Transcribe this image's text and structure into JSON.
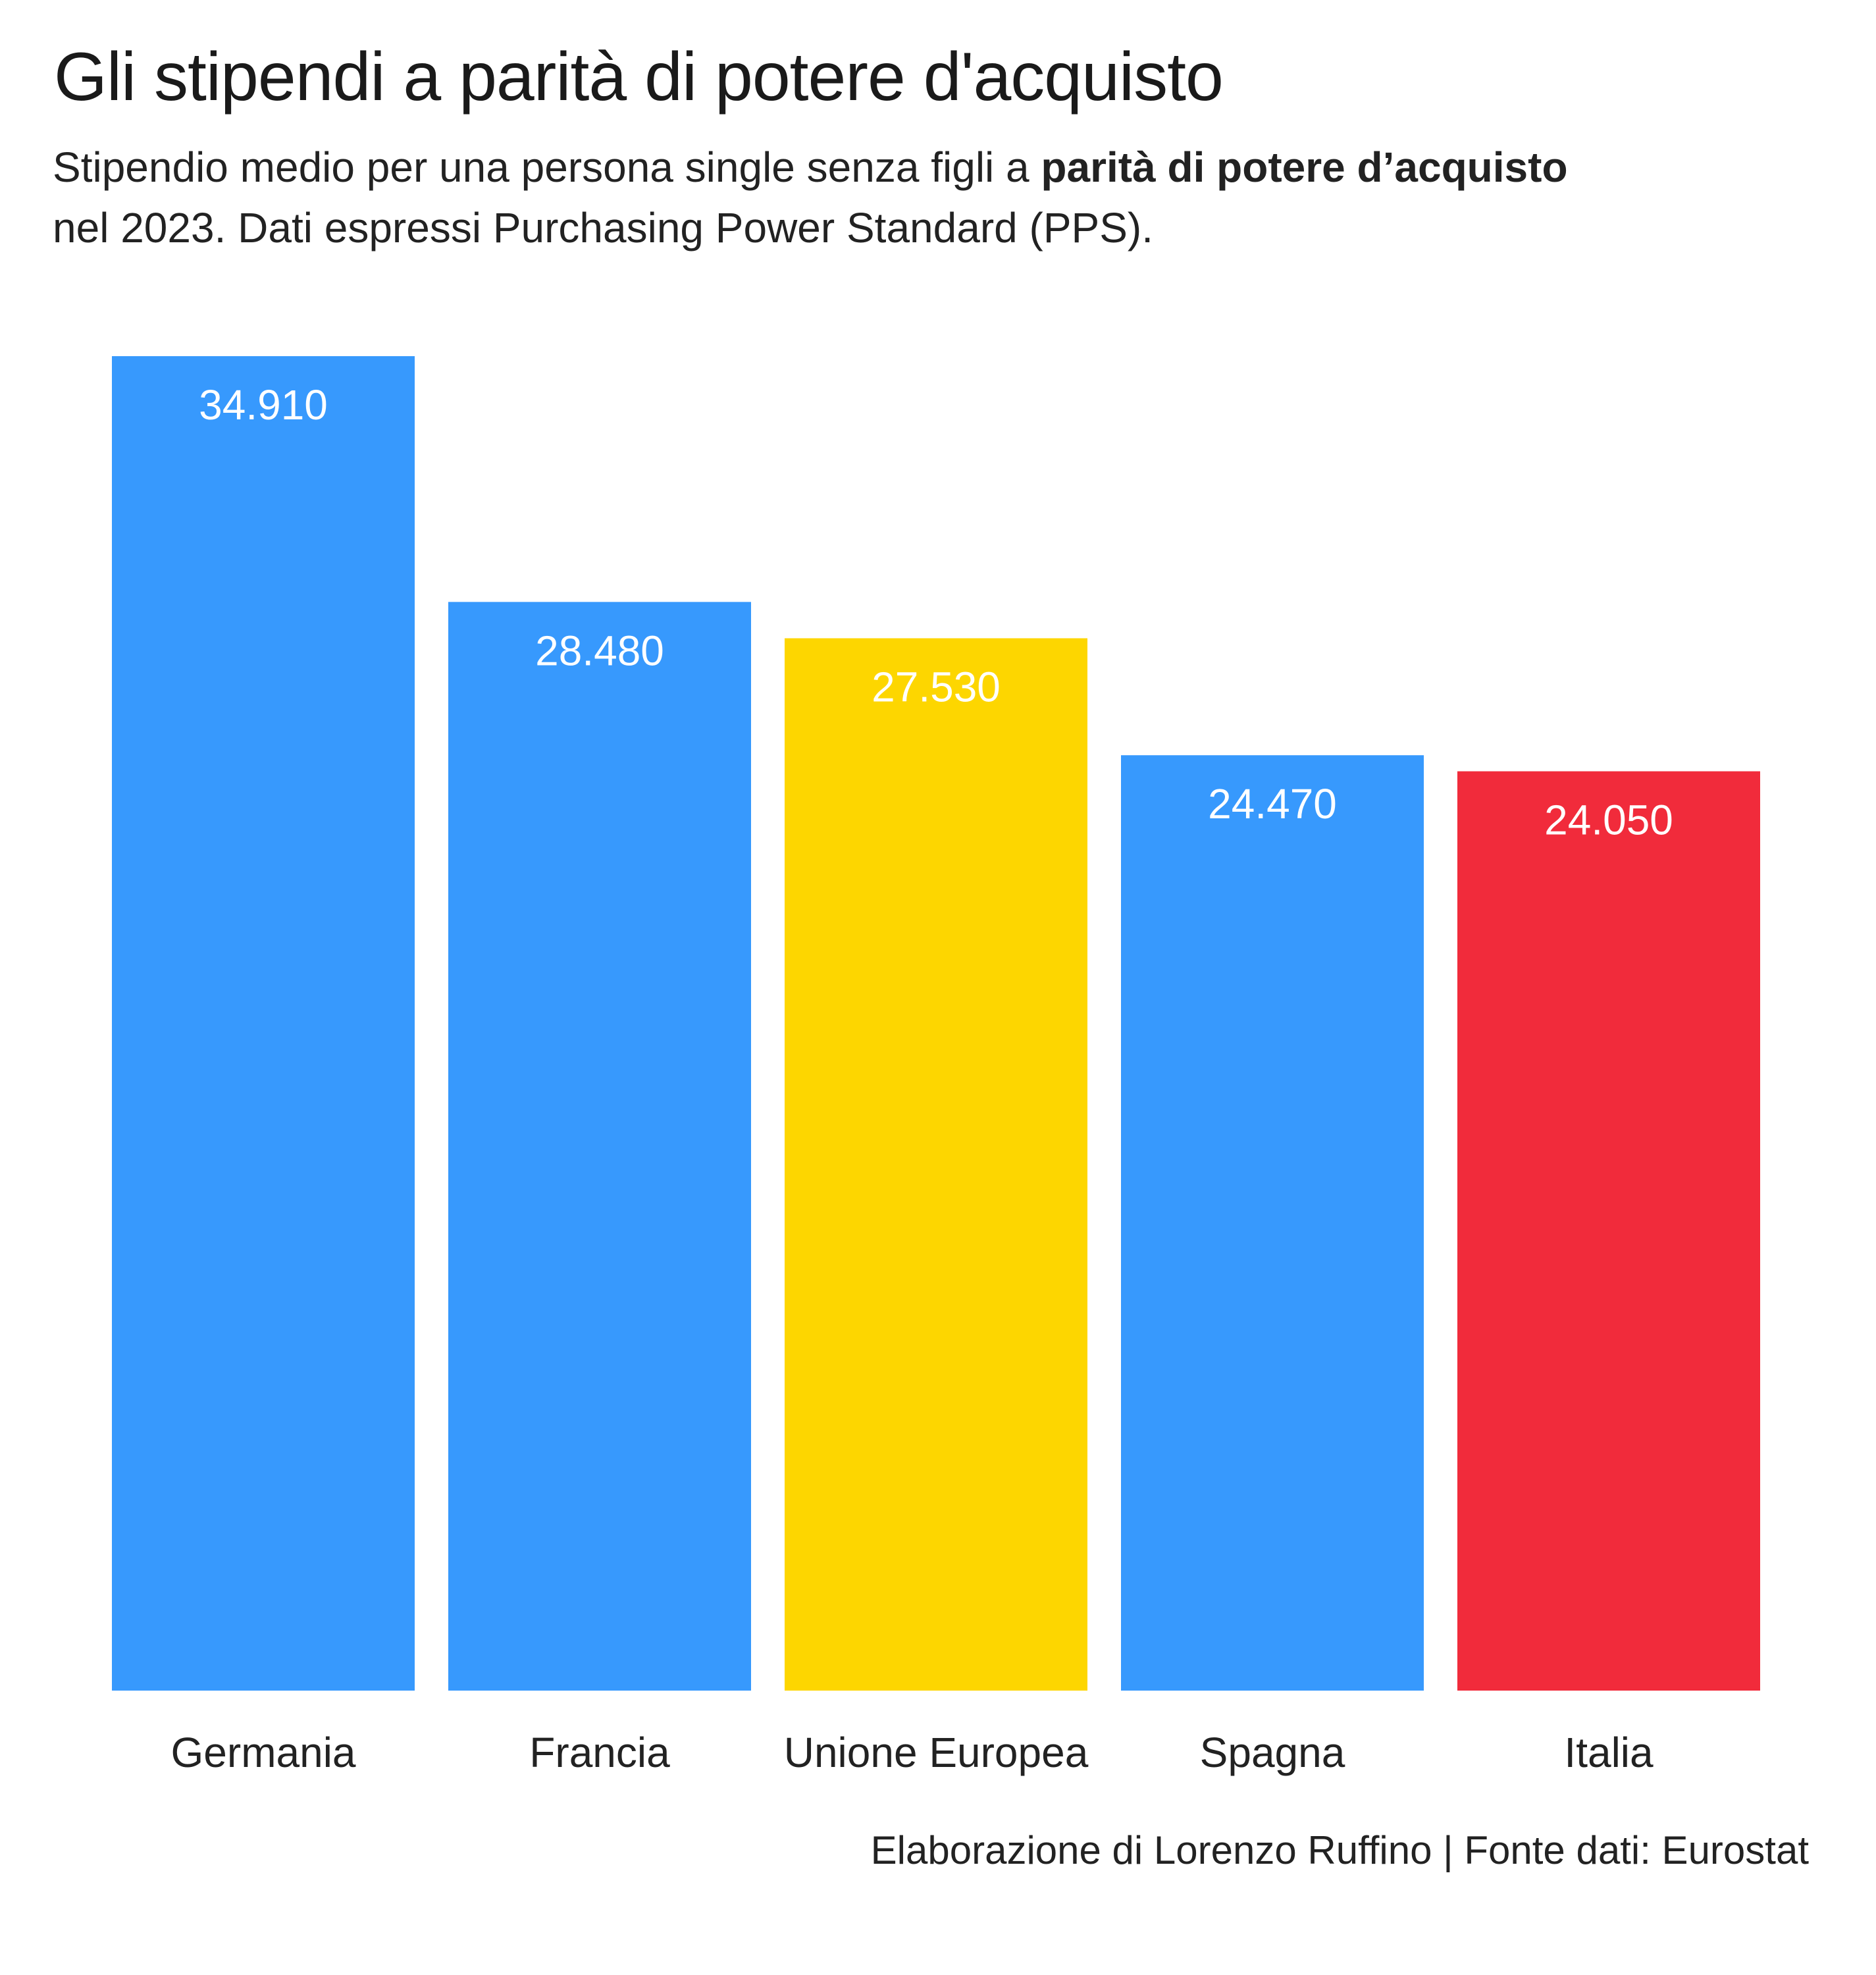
{
  "header": {
    "title": "Gli stipendi a parità di potere d'acquisto",
    "subtitle_part1": "Stipendio medio per una persona single senza figli a ",
    "subtitle_bold": "parità di potere d’acquisto",
    "subtitle_line2": "nel 2023. Dati espressi Purchasing Power Standard (PPS)."
  },
  "chart_data": {
    "type": "bar",
    "categories": [
      "Germania",
      "Francia",
      "Unione Europea",
      "Spagna",
      "Italia"
    ],
    "values": [
      34910,
      28480,
      27530,
      24470,
      24050
    ],
    "value_labels": [
      "34.910",
      "28.480",
      "27.530",
      "24.470",
      "24.050"
    ],
    "colors": [
      "#3799FD",
      "#3799FD",
      "#FDD600",
      "#3799FD",
      "#F12B3B"
    ],
    "value_label_color": "#ffffff",
    "title": "Gli stipendi a parità di potere d'acquisto",
    "xlabel": "",
    "ylabel": "",
    "ylim": [
      0,
      34910
    ],
    "grid": false,
    "legend": "none"
  },
  "footer": {
    "caption": "Elaborazione di Lorenzo Ruffino | Fonte dati: Eurostat"
  }
}
